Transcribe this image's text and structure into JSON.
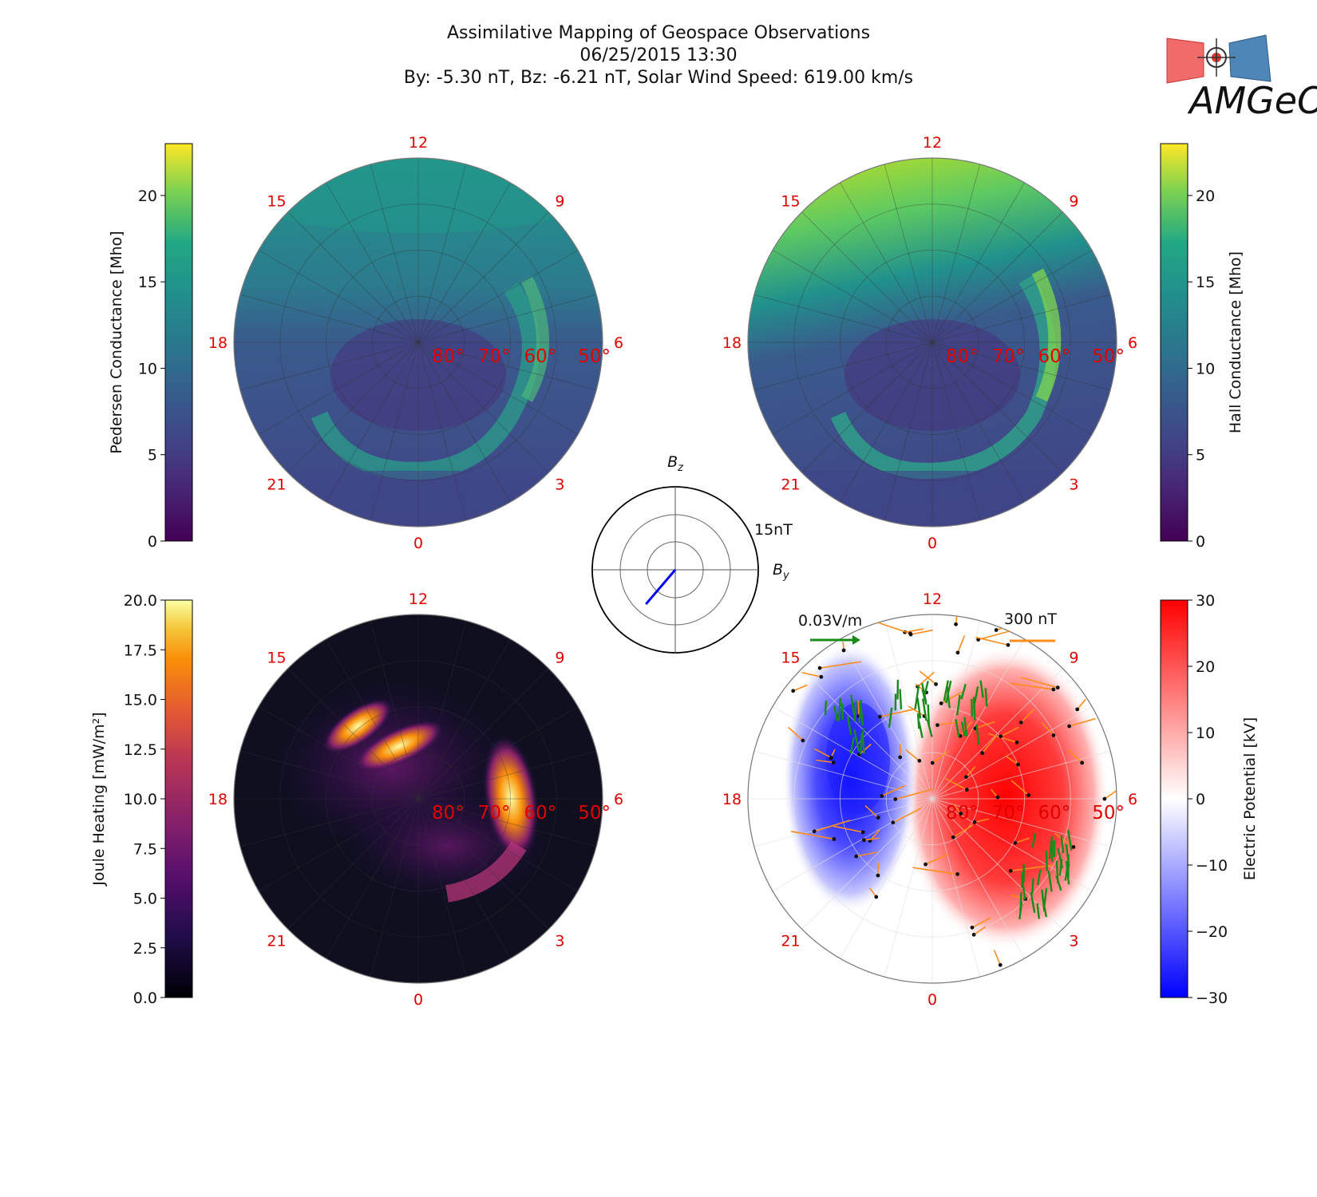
{
  "header": {
    "title": "Assimilative Mapping of Geospace Observations",
    "date": "06/25/2015 13:30",
    "params": "By: -5.30 nT, Bz: -6.21 nT, Solar Wind Speed: 619.00 km/s"
  },
  "logo": {
    "text": "AMGeO"
  },
  "polar_common": {
    "mlt_labels": [
      "12",
      "15",
      "9",
      "18",
      "6",
      "21",
      "3",
      "0"
    ],
    "lat_labels": [
      "80°",
      "70°",
      "60°",
      "50°"
    ]
  },
  "colors": {
    "mlt_label": "#e00000",
    "efield_vector": "#1a8a1a",
    "bfield_vector": "#ff8c1a",
    "imf_vector": "#0000ff"
  },
  "chart_data": [
    {
      "id": "pedersen",
      "type": "heatmap",
      "projection": "polar",
      "colormap": "viridis",
      "colorbar": {
        "label": "Pedersen Conductance [Mho]",
        "ticks": [
          "0",
          "5",
          "10",
          "15",
          "20"
        ],
        "range": [
          0,
          23
        ],
        "position": "left"
      }
    },
    {
      "id": "hall",
      "type": "heatmap",
      "projection": "polar",
      "colormap": "viridis",
      "colorbar": {
        "label": "Hall Conductance [Mho]",
        "ticks": [
          "0",
          "5",
          "10",
          "15",
          "20"
        ],
        "range": [
          0,
          23
        ],
        "position": "right"
      }
    },
    {
      "id": "joule",
      "type": "heatmap",
      "projection": "polar",
      "colormap": "inferno",
      "colorbar": {
        "label": "Joule Heating [mW/m²]",
        "ticks": [
          "0.0",
          "2.5",
          "5.0",
          "7.5",
          "10.0",
          "12.5",
          "15.0",
          "17.5",
          "20.0"
        ],
        "range": [
          0,
          20
        ],
        "position": "left"
      }
    },
    {
      "id": "potential",
      "type": "heatmap",
      "projection": "polar",
      "colormap": "bwr",
      "colorbar": {
        "label": "Electric Potential [kV]",
        "ticks": [
          "−30",
          "−20",
          "−10",
          "0",
          "10",
          "20",
          "30"
        ],
        "range": [
          -30,
          30
        ],
        "position": "right"
      },
      "legend": {
        "efield": "0.03V/m",
        "bfield": "300 nT"
      }
    },
    {
      "id": "imf_clock",
      "type": "line",
      "projection": "polar",
      "axes": {
        "z_label": "Bz",
        "y_label": "By",
        "ring_label": "15nT"
      },
      "imf": {
        "By": -5.3,
        "Bz": -6.21
      },
      "ring_max_nT": 15
    }
  ]
}
